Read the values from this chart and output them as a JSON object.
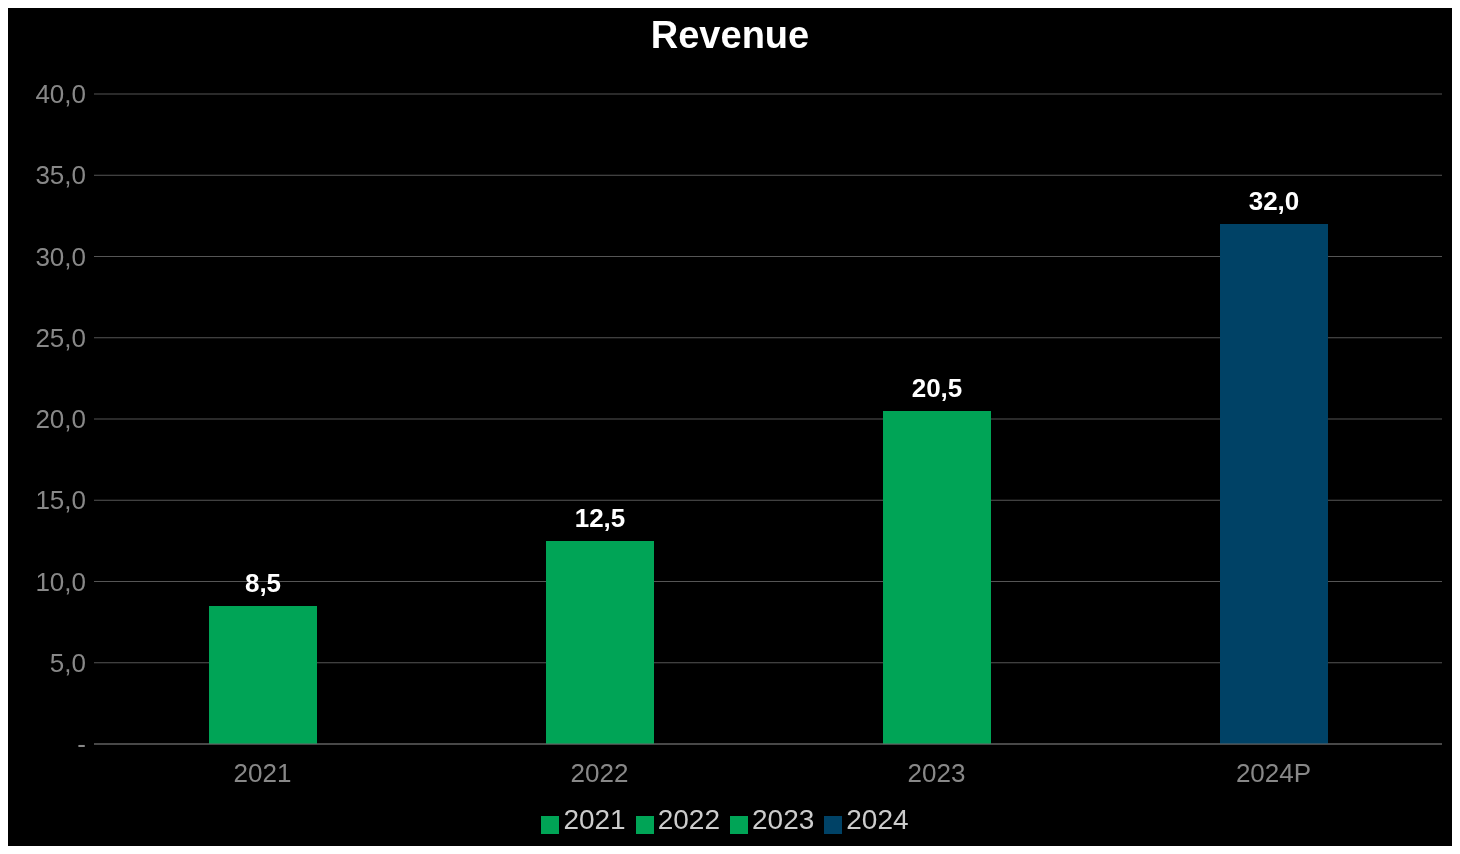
{
  "chart_data": {
    "type": "bar",
    "title": "Revenue",
    "categories": [
      "2021",
      "2022",
      "2023",
      "2024P"
    ],
    "series": [
      {
        "name": "2021",
        "color": "#00a456",
        "values": [
          8.5,
          null,
          null,
          null
        ],
        "value_labels": [
          "8,5",
          null,
          null,
          null
        ]
      },
      {
        "name": "2022",
        "color": "#00a456",
        "values": [
          null,
          12.5,
          null,
          null
        ],
        "value_labels": [
          null,
          "12,5",
          null,
          null
        ]
      },
      {
        "name": "2023",
        "color": "#00a456",
        "values": [
          null,
          null,
          20.5,
          null
        ],
        "value_labels": [
          null,
          null,
          "20,5",
          null
        ]
      },
      {
        "name": "2024",
        "color": "#004266",
        "values": [
          null,
          null,
          null,
          32.0
        ],
        "value_labels": [
          null,
          null,
          null,
          "32,0"
        ]
      }
    ],
    "ylim": [
      0,
      40
    ],
    "yticks": [
      {
        "value": 0,
        "label": "-"
      },
      {
        "value": 5,
        "label": "5,0"
      },
      {
        "value": 10,
        "label": "10,0"
      },
      {
        "value": 15,
        "label": "15,0"
      },
      {
        "value": 20,
        "label": "20,0"
      },
      {
        "value": 25,
        "label": "25,0"
      },
      {
        "value": 30,
        "label": "30,0"
      },
      {
        "value": 35,
        "label": "35,0"
      },
      {
        "value": 40,
        "label": "40,0"
      }
    ],
    "grid": "y",
    "legend": "bottom"
  }
}
